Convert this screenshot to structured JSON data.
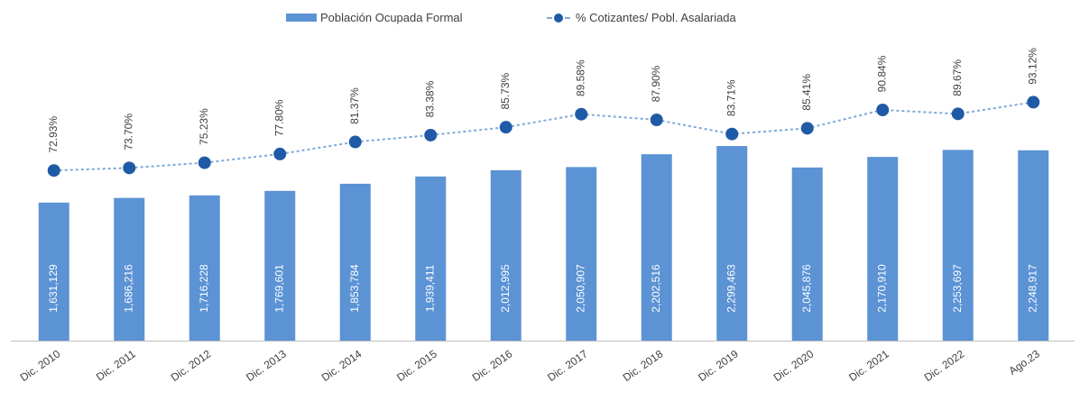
{
  "legend": {
    "bar_label": "Población Ocupada Formal",
    "line_label": "% Cotizantes/ Pobl. Asalariada"
  },
  "colors": {
    "bar": "#5b93d5",
    "line": "#7fa8d8",
    "marker": "#1f5aa6",
    "text": "#404040",
    "bar_label": "#ffffff"
  },
  "chart_data": {
    "type": "bar",
    "categories": [
      "Dic. 2010",
      "Dic. 2011",
      "Dic. 2012",
      "Dic. 2013",
      "Dic. 2014",
      "Dic. 2015",
      "Dic. 2016",
      "Dic. 2017",
      "Dic. 2018",
      "Dic. 2019",
      "Dic. 2020",
      "Dic. 2021",
      "Dic. 2022",
      "Ago.23"
    ],
    "series": [
      {
        "name": "Población Ocupada Formal",
        "type": "bar",
        "values": [
          1631129,
          1686216,
          1716228,
          1769601,
          1853784,
          1939411,
          2012995,
          2050907,
          2202516,
          2299463,
          2045876,
          2170910,
          2253697,
          2248917
        ],
        "labels": [
          "1,631,129",
          "1,686,216",
          "1,716,228",
          "1,769,601",
          "1,853,784",
          "1,939,411",
          "2,012,995",
          "2,050,907",
          "2,202,516",
          "2,299,463",
          "2,045,876",
          "2,170,910",
          "2,253,697",
          "2,248,917"
        ]
      },
      {
        "name": "% Cotizantes/ Pobl. Asalariada",
        "type": "line",
        "values": [
          72.93,
          73.7,
          75.23,
          77.8,
          81.37,
          83.38,
          85.73,
          89.58,
          87.9,
          83.71,
          85.41,
          90.84,
          89.67,
          93.12
        ],
        "labels": [
          "72.93%",
          "73.70%",
          "75.23%",
          "77.80%",
          "81.37%",
          "83.38%",
          "85.73%",
          "89.58%",
          "87.90%",
          "83.71%",
          "85.41%",
          "90.84%",
          "89.67%",
          "93.12%"
        ]
      }
    ],
    "bar_axis_max": 2300000,
    "line_axis_range": [
      20,
      110
    ],
    "legend_position": "top-center",
    "grid": false
  }
}
